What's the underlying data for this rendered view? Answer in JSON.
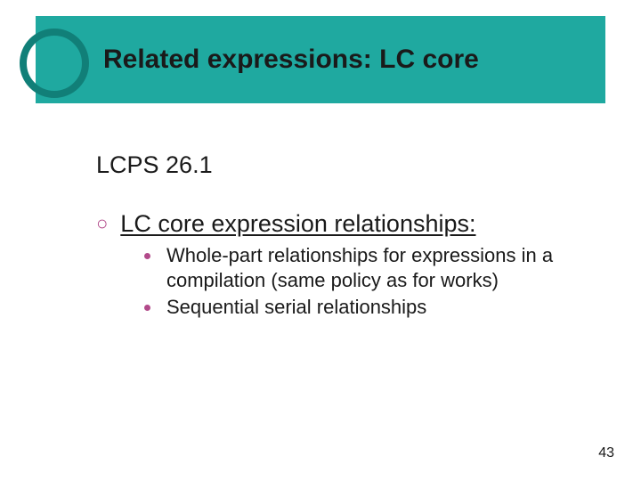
{
  "colors": {
    "title_bg": "#1fa9a0",
    "title_text": "#1a1a1a",
    "ring": "#117f78",
    "accent": "#b24a8a",
    "body_text": "#1a1a1a",
    "background": "#ffffff"
  },
  "title": "Related expressions: LC core",
  "section": "LCPS 26.1",
  "main_bullet": "LC core expression relationships:",
  "sub_bullets": [
    "Whole-part relationships for expressions in a compilation (same policy as for works)",
    "Sequential serial relationships"
  ],
  "page_number": "43",
  "fonts": {
    "title_size_pt": 30,
    "section_size_pt": 27,
    "l1_size_pt": 27,
    "l2_size_pt": 22,
    "pagenum_size_pt": 16,
    "family": "Verdana"
  }
}
